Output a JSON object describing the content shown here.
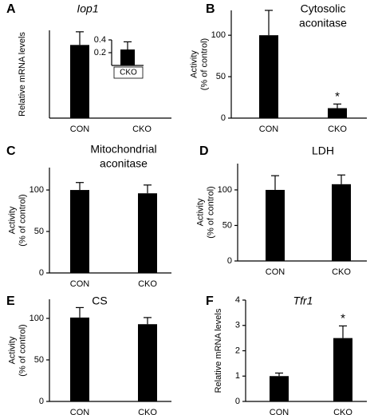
{
  "chart_data": [
    {
      "type": "bar",
      "label": "A",
      "title": [
        "Iop1"
      ],
      "title_style": "italic",
      "ylabel": [
        "Relative mRNA levels"
      ],
      "categories": [
        "CON",
        "CKO"
      ],
      "values": [
        1,
        null
      ],
      "errors": [
        0.18,
        null
      ],
      "color": "#000000",
      "ylim": [
        0,
        1.2
      ],
      "inset": {
        "type": "bar",
        "categories": [
          "CKO"
        ],
        "values": [
          0.25
        ],
        "errors": [
          0.12
        ],
        "color": "#000000",
        "ylim": [
          0,
          0.4
        ],
        "yticks": [
          0.2,
          0.4
        ]
      }
    },
    {
      "type": "bar",
      "label": "B",
      "title": [
        "Cytosolic",
        "aconitase"
      ],
      "ylabel": [
        "Activity",
        "(% of control)"
      ],
      "categories": [
        "CON",
        "CKO"
      ],
      "values": [
        100,
        12
      ],
      "errors": [
        30,
        5
      ],
      "color": "#000000",
      "ylim": [
        0,
        130
      ],
      "yticks": [
        0,
        50,
        100
      ],
      "annotations": [
        {
          "text": "*",
          "category": 1
        }
      ]
    },
    {
      "type": "bar",
      "label": "C",
      "title": [
        "Mitochondrial",
        "aconitase"
      ],
      "ylabel": [
        "Activity",
        "(% of control)"
      ],
      "categories": [
        "CON",
        "CKO"
      ],
      "values": [
        100,
        96
      ],
      "errors": [
        9,
        10
      ],
      "color": "#000000",
      "ylim": [
        0,
        127
      ],
      "yticks": [
        0,
        50,
        100
      ]
    },
    {
      "type": "bar",
      "label": "D",
      "title": [
        "LDH"
      ],
      "ylabel": [
        "Activity",
        "(% of control)"
      ],
      "categories": [
        "CON",
        "CKO"
      ],
      "values": [
        100,
        108
      ],
      "errors": [
        20,
        13
      ],
      "color": "#000000",
      "ylim": [
        0,
        137
      ],
      "yticks": [
        0,
        50,
        100
      ]
    },
    {
      "type": "bar",
      "label": "E",
      "title": [
        "CS"
      ],
      "ylabel": [
        "Activity",
        "(% of control)"
      ],
      "categories": [
        "CON",
        "CKO"
      ],
      "values": [
        101,
        93
      ],
      "errors": [
        12,
        8
      ],
      "color": "#000000",
      "ylim": [
        0,
        123
      ],
      "yticks": [
        0,
        50,
        100
      ]
    },
    {
      "type": "bar",
      "label": "F",
      "title": [
        "Tfr1"
      ],
      "title_style": "italic",
      "ylabel": [
        "Relative mRNA levels"
      ],
      "categories": [
        "CON",
        "CKO"
      ],
      "values": [
        1,
        2.5
      ],
      "errors": [
        0.12,
        0.48
      ],
      "color": "#000000",
      "ylim": [
        0,
        4
      ],
      "yticks": [
        0,
        1,
        2,
        3,
        4
      ],
      "annotations": [
        {
          "text": "*",
          "category": 1
        }
      ]
    }
  ]
}
